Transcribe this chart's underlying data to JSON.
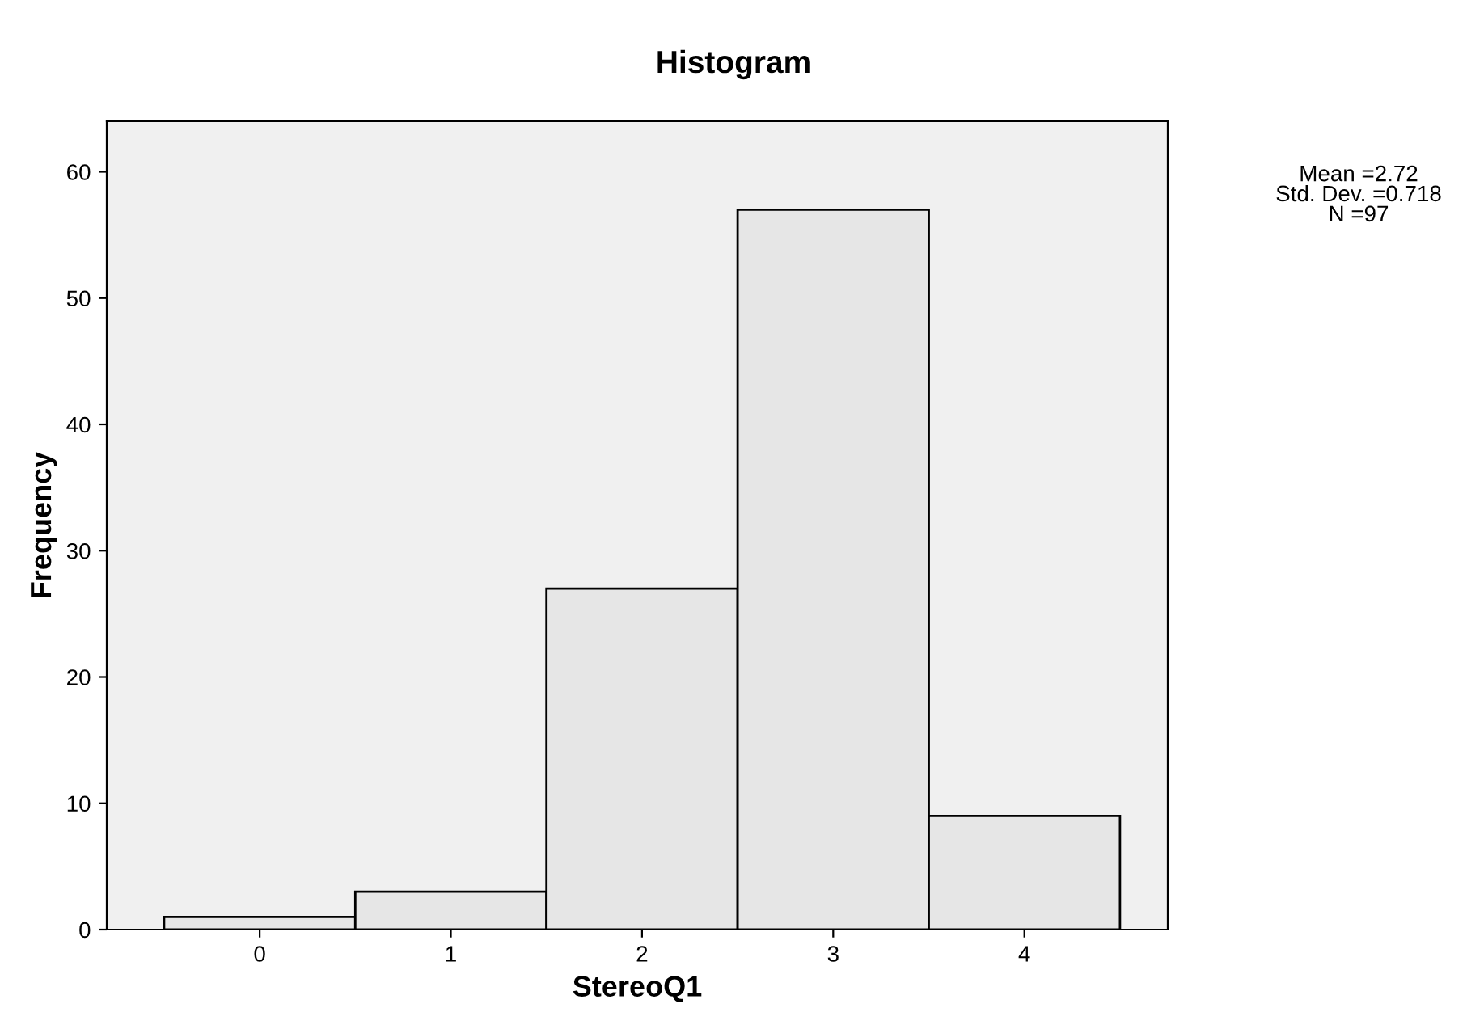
{
  "chart_data": {
    "type": "histogram",
    "title": "Histogram",
    "xlabel": "StereoQ1",
    "ylabel": "Frequency",
    "bins": [
      -0.5,
      0.5,
      1.5,
      2.5,
      3.5,
      4.5
    ],
    "values": [
      1,
      3,
      27,
      57,
      9
    ],
    "color": "#e6e6e6",
    "xlim": [
      -0.8,
      4.75
    ],
    "xticks": [
      0,
      1,
      2,
      3,
      4
    ],
    "ylim": [
      0,
      64
    ],
    "yticks": [
      0,
      10,
      20,
      30,
      40,
      50,
      60
    ],
    "grid": false,
    "annotations": [
      "Mean =2.72\nStd. Dev. =0.718\nN =97"
    ]
  }
}
